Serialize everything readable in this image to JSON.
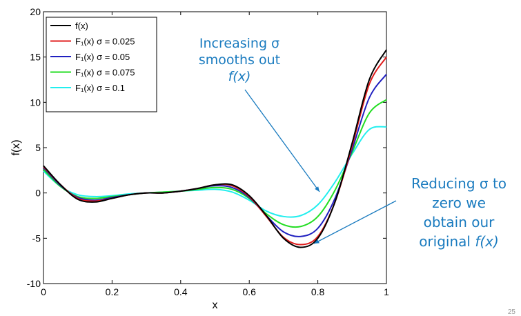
{
  "chart_data": {
    "type": "line",
    "xlabel": "x",
    "ylabel": "f(x)",
    "xlim": [
      0,
      1
    ],
    "ylim": [
      -10,
      20
    ],
    "xticks": [
      0,
      0.2,
      0.4,
      0.6,
      0.8,
      1
    ],
    "yticks": [
      -10,
      -5,
      0,
      5,
      10,
      15,
      20
    ],
    "xtick_labels": [
      "0",
      "0.2",
      "0.4",
      "0.6",
      "0.8",
      "1"
    ],
    "ytick_labels": [
      "-10",
      "-5",
      "0",
      "5",
      "10",
      "15",
      "20"
    ],
    "legend_position": "top-left",
    "x": [
      0,
      0.05,
      0.1,
      0.15,
      0.2,
      0.25,
      0.3,
      0.35,
      0.4,
      0.45,
      0.5,
      0.55,
      0.6,
      0.65,
      0.7,
      0.75,
      0.8,
      0.85,
      0.9,
      0.95,
      1.0
    ],
    "series": [
      {
        "name": "f(x)",
        "color": "#000000",
        "values": [
          3.0,
          0.9,
          -0.7,
          -1.0,
          -0.6,
          -0.2,
          0.0,
          0.0,
          0.2,
          0.5,
          0.9,
          0.9,
          -0.3,
          -2.5,
          -5.0,
          -6.0,
          -5.0,
          -1.0,
          5.5,
          12.5,
          15.8
        ]
      },
      {
        "name": "F₁(x) σ = 0.025",
        "color": "#e01b1b",
        "values": [
          2.9,
          0.9,
          -0.6,
          -0.9,
          -0.6,
          -0.2,
          0.0,
          0.0,
          0.2,
          0.5,
          0.9,
          0.8,
          -0.4,
          -2.6,
          -4.9,
          -5.7,
          -4.8,
          -1.0,
          5.2,
          12.0,
          15.0
        ]
      },
      {
        "name": "F₁(x) σ = 0.05",
        "color": "#2020c0",
        "values": [
          2.8,
          0.8,
          -0.5,
          -0.8,
          -0.5,
          -0.2,
          0.0,
          0.0,
          0.2,
          0.5,
          0.8,
          0.6,
          -0.5,
          -2.5,
          -4.3,
          -4.8,
          -3.9,
          -0.6,
          4.8,
          10.5,
          13.1
        ]
      },
      {
        "name": "F₁(x) σ = 0.075",
        "color": "#22dd22",
        "values": [
          2.6,
          0.7,
          -0.4,
          -0.6,
          -0.4,
          -0.2,
          0.0,
          0.1,
          0.2,
          0.4,
          0.6,
          0.4,
          -0.6,
          -2.3,
          -3.5,
          -3.7,
          -2.6,
          0.3,
          4.5,
          8.8,
          10.3
        ]
      },
      {
        "name": "F₁(x) σ = 0.1",
        "color": "#22eeee",
        "values": [
          2.4,
          0.7,
          -0.2,
          -0.4,
          -0.3,
          -0.1,
          0.0,
          0.1,
          0.2,
          0.3,
          0.4,
          0.1,
          -0.8,
          -2.0,
          -2.6,
          -2.5,
          -1.3,
          1.2,
          4.3,
          7.0,
          7.3
        ]
      }
    ]
  },
  "annotations": {
    "increasing_line1": "Increasing σ",
    "increasing_line2": "smooths out",
    "increasing_line3": "f(x)",
    "reducing_line1": "Reducing σ to",
    "reducing_line2": "zero we",
    "reducing_line3": "obtain our",
    "reducing_line4_prefix": "original ",
    "reducing_line4_italic": "f(x)",
    "annotation_color": "#1a7bbf"
  },
  "page_number": "25"
}
